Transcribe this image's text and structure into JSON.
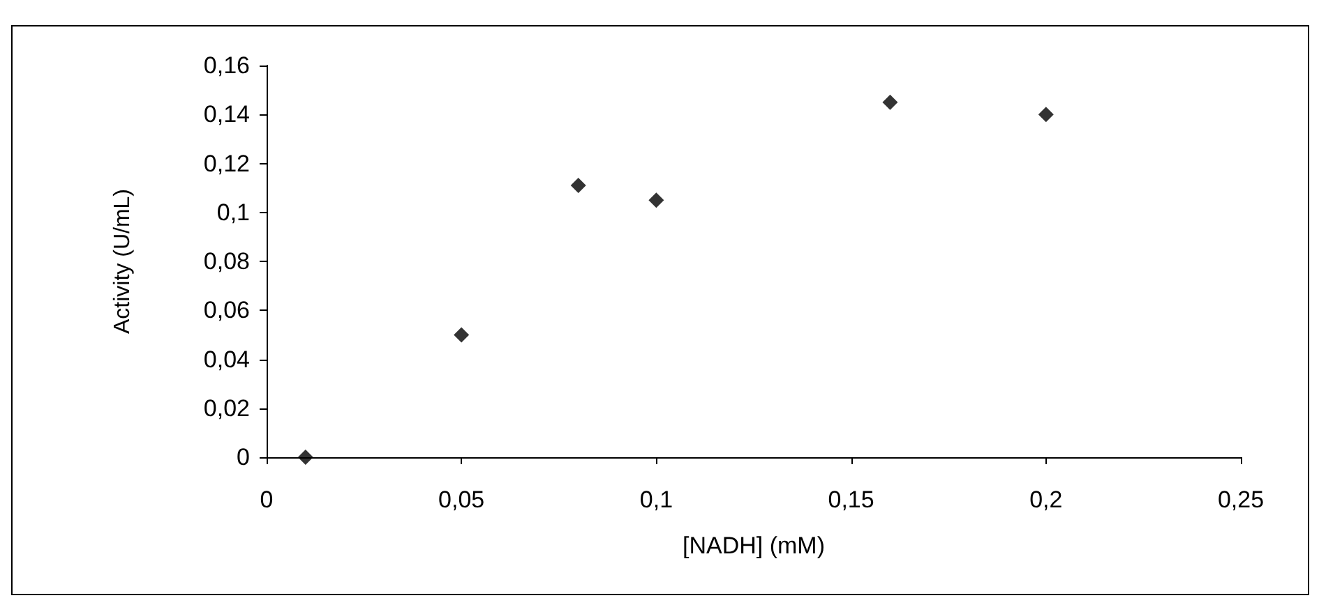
{
  "chart_data": {
    "type": "scatter",
    "xlabel": "[NADH] (mM)",
    "ylabel": "Activity (U/mL)",
    "x": [
      0.01,
      0.05,
      0.08,
      0.1,
      0.16,
      0.2
    ],
    "series": [
      {
        "color": "#000000",
        "values": [
          0,
          0.05,
          0.111,
          0.105,
          0.145,
          0.14
        ]
      }
    ],
    "xlim": [
      0,
      0.25
    ],
    "ylim": [
      0,
      0.16
    ],
    "xticks": [
      {
        "value": 0,
        "label": "0"
      },
      {
        "value": 0.05,
        "label": "0,05"
      },
      {
        "value": 0.1,
        "label": "0,1"
      },
      {
        "value": 0.15,
        "label": "0,15"
      },
      {
        "value": 0.2,
        "label": "0,2"
      },
      {
        "value": 0.25,
        "label": "0,25"
      }
    ],
    "yticks": [
      {
        "value": 0,
        "label": "0"
      },
      {
        "value": 0.02,
        "label": "0,02"
      },
      {
        "value": 0.04,
        "label": "0,04"
      },
      {
        "value": 0.06,
        "label": "0,06"
      },
      {
        "value": 0.08,
        "label": "0,08"
      },
      {
        "value": 0.1,
        "label": "0,1"
      },
      {
        "value": 0.12,
        "label": "0,12"
      },
      {
        "value": 0.14,
        "label": "0,14"
      },
      {
        "value": 0.16,
        "label": "0,16"
      }
    ],
    "marker": "diamond",
    "grid": false
  }
}
